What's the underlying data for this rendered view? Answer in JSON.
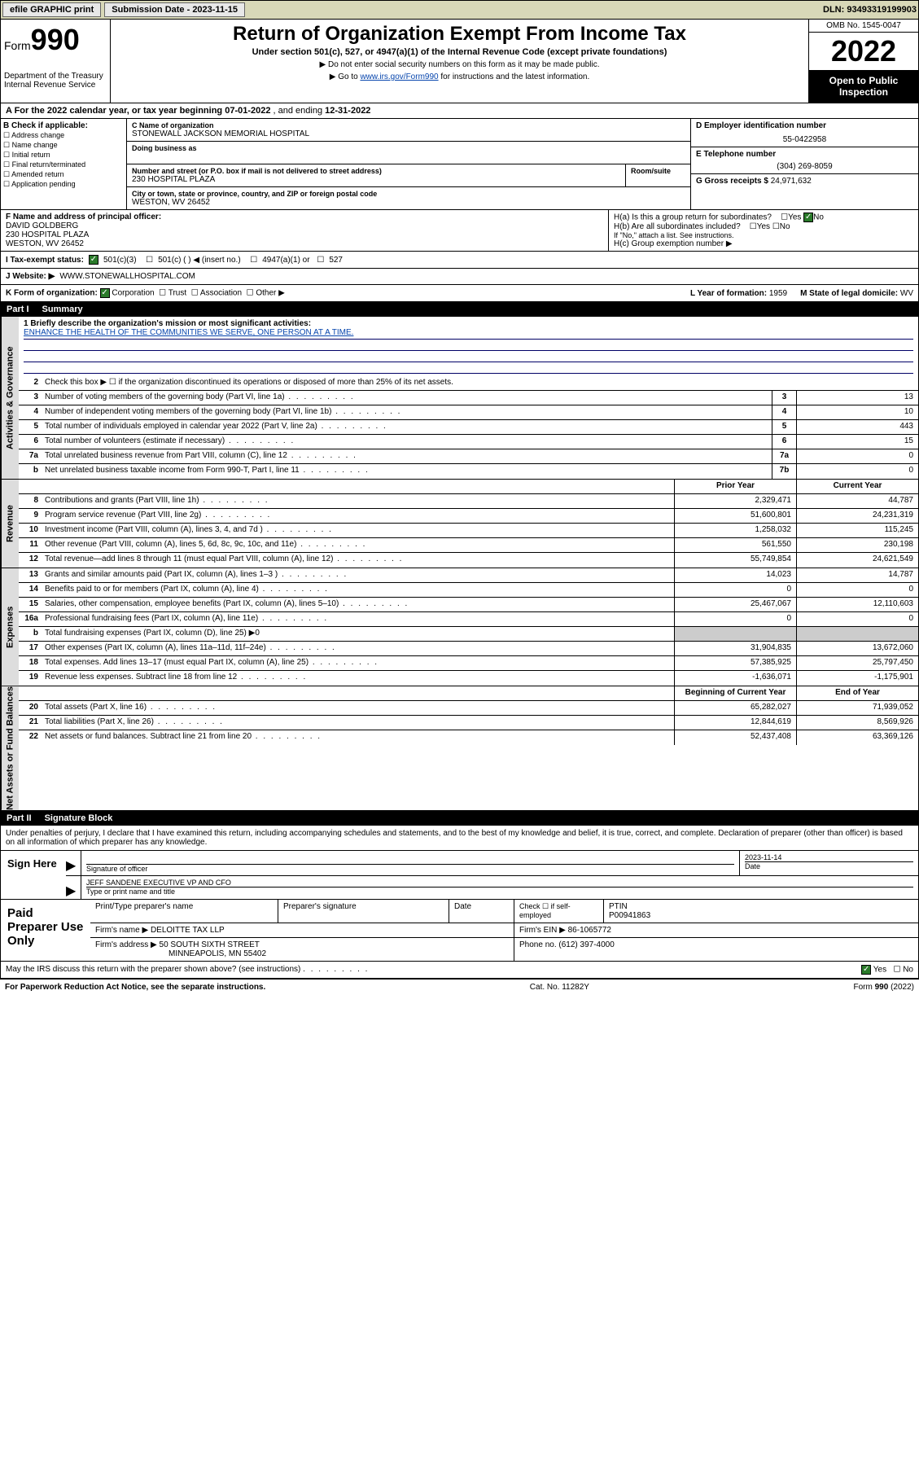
{
  "topbar": {
    "efile": "efile GRAPHIC print",
    "sub_lbl": "Submission Date - 2023-11-15",
    "dln": "DLN: 93493319199903"
  },
  "header": {
    "form_prefix": "Form",
    "form_num": "990",
    "dept": "Department of the Treasury",
    "irs": "Internal Revenue Service",
    "title": "Return of Organization Exempt From Income Tax",
    "sub": "Under section 501(c), 527, or 4947(a)(1) of the Internal Revenue Code (except private foundations)",
    "note1": "▶ Do not enter social security numbers on this form as it may be made public.",
    "note2_pre": "▶ Go to ",
    "note2_link": "www.irs.gov/Form990",
    "note2_post": " for instructions and the latest information.",
    "omb": "OMB No. 1545-0047",
    "year": "2022",
    "otp": "Open to Public Inspection"
  },
  "period": {
    "a_pre": "A For the 2022 calendar year, or tax year beginning ",
    "begin": "07-01-2022",
    "mid": " , and ending ",
    "end": "12-31-2022"
  },
  "b": {
    "hdr": "B Check if applicable:",
    "opts": [
      "Address change",
      "Name change",
      "Initial return",
      "Final return/terminated",
      "Amended return",
      "Application pending"
    ]
  },
  "c": {
    "name_lbl": "C Name of organization",
    "name": "STONEWALL JACKSON MEMORIAL HOSPITAL",
    "dba_lbl": "Doing business as",
    "addr_lbl": "Number and street (or P.O. box if mail is not delivered to street address)",
    "room_lbl": "Room/suite",
    "addr": "230 HOSPITAL PLAZA",
    "city_lbl": "City or town, state or province, country, and ZIP or foreign postal code",
    "city": "WESTON, WV  26452"
  },
  "d": {
    "lbl": "D Employer identification number",
    "val": "55-0422958"
  },
  "e": {
    "lbl": "E Telephone number",
    "val": "(304) 269-8059"
  },
  "g": {
    "lbl": "G Gross receipts $",
    "val": "24,971,632"
  },
  "f": {
    "lbl": "F  Name and address of principal officer:",
    "name": "DAVID GOLDBERG",
    "addr1": "230 HOSPITAL PLAZA",
    "addr2": "WESTON, WV  26452"
  },
  "h": {
    "a": "H(a)  Is this a group return for subordinates?",
    "a_yes": "Yes",
    "a_no": "No",
    "b": "H(b)  Are all subordinates included?",
    "b_note": "If \"No,\" attach a list. See instructions.",
    "c": "H(c)  Group exemption number ▶"
  },
  "i": {
    "lbl": "I   Tax-exempt status:",
    "o1": "501(c)(3)",
    "o2": "501(c) (  ) ◀ (insert no.)",
    "o3": "4947(a)(1) or",
    "o4": "527"
  },
  "j": {
    "lbl": "J   Website: ▶",
    "val": "WWW.STONEWALLHOSPITAL.COM"
  },
  "k": {
    "lbl": "K Form of organization:",
    "o1": "Corporation",
    "o2": "Trust",
    "o3": "Association",
    "o4": "Other ▶",
    "l_lbl": "L Year of formation:",
    "l_val": "1959",
    "m_lbl": "M State of legal domicile:",
    "m_val": "WV"
  },
  "part1": {
    "num": "Part I",
    "title": "Summary"
  },
  "mission": {
    "q": "1   Briefly describe the organization's mission or most significant activities:",
    "txt": "ENHANCE THE HEALTH OF THE COMMUNITIES WE SERVE, ONE PERSON AT A TIME."
  },
  "lines_gov": [
    {
      "n": "2",
      "t": "Check this box ▶ ☐  if the organization discontinued its operations or disposed of more than 25% of its net assets."
    },
    {
      "n": "3",
      "t": "Number of voting members of the governing body (Part VI, line 1a)",
      "box": "3",
      "v": "13"
    },
    {
      "n": "4",
      "t": "Number of independent voting members of the governing body (Part VI, line 1b)",
      "box": "4",
      "v": "10"
    },
    {
      "n": "5",
      "t": "Total number of individuals employed in calendar year 2022 (Part V, line 2a)",
      "box": "5",
      "v": "443"
    },
    {
      "n": "6",
      "t": "Total number of volunteers (estimate if necessary)",
      "box": "6",
      "v": "15"
    },
    {
      "n": "7a",
      "t": "Total unrelated business revenue from Part VIII, column (C), line 12",
      "box": "7a",
      "v": "0"
    },
    {
      "n": "b",
      "t": "Net unrelated business taxable income from Form 990-T, Part I, line 11",
      "box": "7b",
      "v": "0"
    }
  ],
  "col_hdrs": {
    "prior": "Prior Year",
    "curr": "Current Year"
  },
  "lines_rev": [
    {
      "n": "8",
      "t": "Contributions and grants (Part VIII, line 1h)",
      "p": "2,329,471",
      "c": "44,787"
    },
    {
      "n": "9",
      "t": "Program service revenue (Part VIII, line 2g)",
      "p": "51,600,801",
      "c": "24,231,319"
    },
    {
      "n": "10",
      "t": "Investment income (Part VIII, column (A), lines 3, 4, and 7d )",
      "p": "1,258,032",
      "c": "115,245"
    },
    {
      "n": "11",
      "t": "Other revenue (Part VIII, column (A), lines 5, 6d, 8c, 9c, 10c, and 11e)",
      "p": "561,550",
      "c": "230,198"
    },
    {
      "n": "12",
      "t": "Total revenue—add lines 8 through 11 (must equal Part VIII, column (A), line 12)",
      "p": "55,749,854",
      "c": "24,621,549"
    }
  ],
  "lines_exp": [
    {
      "n": "13",
      "t": "Grants and similar amounts paid (Part IX, column (A), lines 1–3 )",
      "p": "14,023",
      "c": "14,787"
    },
    {
      "n": "14",
      "t": "Benefits paid to or for members (Part IX, column (A), line 4)",
      "p": "0",
      "c": "0"
    },
    {
      "n": "15",
      "t": "Salaries, other compensation, employee benefits (Part IX, column (A), lines 5–10)",
      "p": "25,467,067",
      "c": "12,110,603"
    },
    {
      "n": "16a",
      "t": "Professional fundraising fees (Part IX, column (A), line 11e)",
      "p": "0",
      "c": "0"
    },
    {
      "n": "b",
      "t": "Total fundraising expenses (Part IX, column (D), line 25) ▶0",
      "grey": true
    },
    {
      "n": "17",
      "t": "Other expenses (Part IX, column (A), lines 11a–11d, 11f–24e)",
      "p": "31,904,835",
      "c": "13,672,060"
    },
    {
      "n": "18",
      "t": "Total expenses. Add lines 13–17 (must equal Part IX, column (A), line 25)",
      "p": "57,385,925",
      "c": "25,797,450"
    },
    {
      "n": "19",
      "t": "Revenue less expenses. Subtract line 18 from line 12",
      "p": "-1,636,071",
      "c": "-1,175,901"
    }
  ],
  "col_hdrs2": {
    "begin": "Beginning of Current Year",
    "end": "End of Year"
  },
  "lines_net": [
    {
      "n": "20",
      "t": "Total assets (Part X, line 16)",
      "p": "65,282,027",
      "c": "71,939,052"
    },
    {
      "n": "21",
      "t": "Total liabilities (Part X, line 26)",
      "p": "12,844,619",
      "c": "8,569,926"
    },
    {
      "n": "22",
      "t": "Net assets or fund balances. Subtract line 21 from line 20",
      "p": "52,437,408",
      "c": "63,369,126"
    }
  ],
  "part2": {
    "num": "Part II",
    "title": "Signature Block"
  },
  "sig_intro": "Under penalties of perjury, I declare that I have examined this return, including accompanying schedules and statements, and to the best of my knowledge and belief, it is true, correct, and complete. Declaration of preparer (other than officer) is based on all information of which preparer has any knowledge.",
  "sign": {
    "here": "Sign Here",
    "sig_lbl": "Signature of officer",
    "date_lbl": "Date",
    "date": "2023-11-14",
    "name": "JEFF SANDENE  EXECUTIVE VP AND CFO",
    "name_lbl": "Type or print name and title"
  },
  "prep": {
    "title": "Paid Preparer Use Only",
    "h1": "Print/Type preparer's name",
    "h2": "Preparer's signature",
    "h3": "Date",
    "h4_lbl": "Check ☐ if self-employed",
    "h5_lbl": "PTIN",
    "h5": "P00941863",
    "firm_lbl": "Firm's name    ▶",
    "firm": "DELOITTE TAX LLP",
    "ein_lbl": "Firm's EIN ▶",
    "ein": "86-1065772",
    "addr_lbl": "Firm's address ▶",
    "addr1": "50 SOUTH SIXTH STREET",
    "addr2": "MINNEAPOLIS, MN  55402",
    "phone_lbl": "Phone no.",
    "phone": "(612) 397-4000"
  },
  "discuss": {
    "q": "May the IRS discuss this return with the preparer shown above? (see instructions)",
    "yes": "Yes",
    "no": "No"
  },
  "footer": {
    "left": "For Paperwork Reduction Act Notice, see the separate instructions.",
    "mid": "Cat. No. 11282Y",
    "right": "Form 990 (2022)"
  },
  "vtabs": {
    "gov": "Activities & Governance",
    "rev": "Revenue",
    "exp": "Expenses",
    "net": "Net Assets or Fund Balances"
  }
}
